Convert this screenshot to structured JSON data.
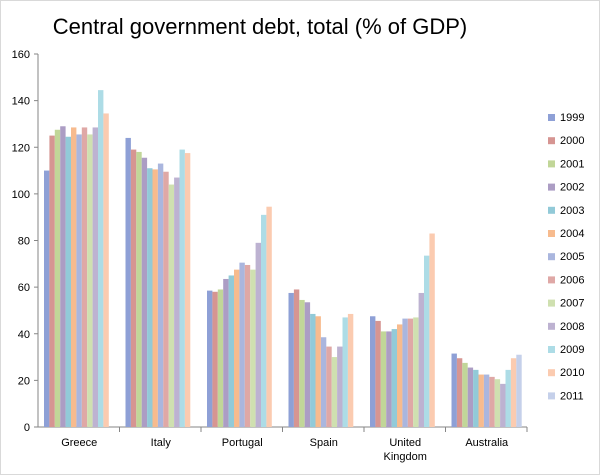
{
  "chart_data": {
    "type": "bar",
    "title": "Central government debt, total (% of GDP)",
    "xlabel": "",
    "ylabel": "",
    "ylim": [
      0,
      160
    ],
    "yticks": [
      0,
      20,
      40,
      60,
      80,
      100,
      120,
      140,
      160
    ],
    "grid": false,
    "legend_position": "right",
    "categories": [
      "Greece",
      "Italy",
      "Portugal",
      "Spain",
      "United Kingdom",
      "Australia"
    ],
    "category_labels": [
      [
        "Greece"
      ],
      [
        "Italy"
      ],
      [
        "Portugal"
      ],
      [
        "Spain"
      ],
      [
        "United",
        "Kingdom"
      ],
      [
        "Australia"
      ]
    ],
    "series": [
      {
        "name": "1999",
        "color": "#8ea0d6",
        "values": [
          110,
          124,
          58.5,
          57.5,
          47.5,
          31.5
        ]
      },
      {
        "name": "2000",
        "color": "#d69592",
        "values": [
          125,
          119,
          58,
          59,
          45.5,
          29.5
        ]
      },
      {
        "name": "2001",
        "color": "#c1d698",
        "values": [
          127.5,
          118,
          59,
          54.5,
          41,
          27.5
        ]
      },
      {
        "name": "2002",
        "color": "#ac9dc4",
        "values": [
          129,
          115.5,
          63.5,
          53.5,
          41,
          25.5
        ]
      },
      {
        "name": "2003",
        "color": "#92cad8",
        "values": [
          124.5,
          111,
          65,
          48.5,
          42,
          24.5
        ]
      },
      {
        "name": "2004",
        "color": "#f7bb8e",
        "values": [
          128.5,
          110.5,
          67.5,
          47.5,
          44,
          22.5
        ]
      },
      {
        "name": "2005",
        "color": "#aab6de",
        "values": [
          125.5,
          113,
          70.5,
          38.5,
          46.5,
          22.5
        ]
      },
      {
        "name": "2006",
        "color": "#dfa8a6",
        "values": [
          128.5,
          109.5,
          69.5,
          34.5,
          46.5,
          21.5
        ]
      },
      {
        "name": "2007",
        "color": "#cfe0b0",
        "values": [
          125.5,
          104,
          67.5,
          30,
          47,
          20.5
        ]
      },
      {
        "name": "2008",
        "color": "#bdb2d1",
        "values": [
          128.5,
          107,
          79,
          34.5,
          57.5,
          18.5
        ]
      },
      {
        "name": "2009",
        "color": "#addce6",
        "values": [
          144.5,
          119,
          91,
          47,
          73.5,
          24.5
        ]
      },
      {
        "name": "2010",
        "color": "#fbcbb0",
        "values": [
          134.5,
          117.5,
          94.5,
          48.5,
          83,
          29.5
        ]
      },
      {
        "name": "2011",
        "color": "#c5d0ea",
        "values": [
          null,
          null,
          null,
          null,
          null,
          31
        ]
      }
    ]
  }
}
